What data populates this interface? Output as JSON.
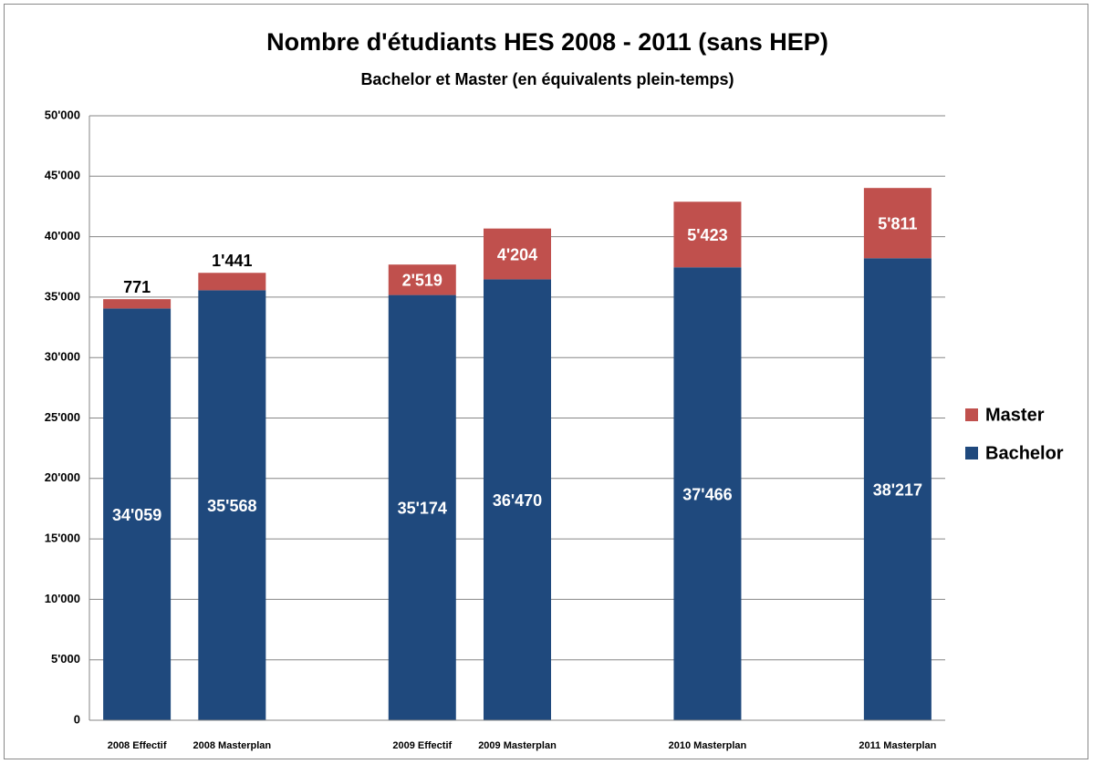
{
  "chart_data": {
    "type": "stacked_bar",
    "title": "Nombre d'étudiants HES 2008 - 2011 (sans HEP)",
    "subtitle": "Bachelor et Master (en équivalents plein-temps)",
    "categories": [
      "2008 Effectif",
      "2008  Masterplan",
      null,
      "2009 Effectif",
      "2009 Masterplan",
      null,
      "2010 Masterplan",
      null,
      "2011 Masterplan"
    ],
    "series": [
      {
        "name": "Bachelor",
        "color": "#1f497d",
        "values": [
          34059,
          35568,
          null,
          35174,
          36470,
          null,
          37466,
          null,
          38217
        ],
        "value_labels": [
          "34'059",
          "35'568",
          null,
          "35'174",
          "36'470",
          null,
          "37'466",
          null,
          "38'217"
        ]
      },
      {
        "name": "Master",
        "color": "#c0504d",
        "values": [
          771,
          1441,
          null,
          2519,
          4204,
          null,
          5423,
          null,
          5811
        ],
        "value_labels": [
          "771",
          "1'441",
          null,
          "2'519",
          "4'204",
          null,
          "5'423",
          null,
          "5'811"
        ]
      }
    ],
    "ylim": [
      0,
      50000
    ],
    "yticks": [
      0,
      {
        "value": 5000,
        "label": "5'000"
      },
      {
        "value": 10000,
        "label": "10'000"
      },
      {
        "value": 15000,
        "label": "15'000"
      },
      {
        "value": 20000,
        "label": "20'000"
      },
      {
        "value": 25000,
        "label": "25'000"
      },
      {
        "value": 30000,
        "label": "30'000"
      },
      {
        "value": 35000,
        "label": "35'000"
      },
      {
        "value": 40000,
        "label": "40'000"
      },
      {
        "value": 45000,
        "label": "45'000"
      },
      {
        "value": 50000,
        "label": "50'000"
      }
    ],
    "grid": true,
    "legend": "right"
  }
}
